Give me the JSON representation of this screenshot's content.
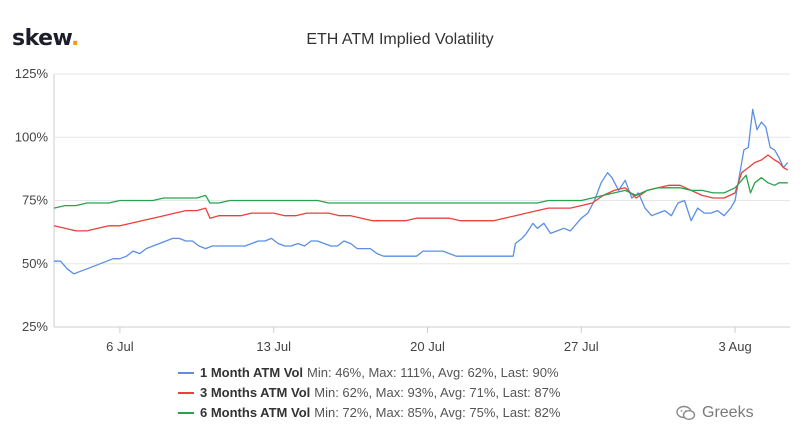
{
  "brand": {
    "name": "skew",
    "dot": "."
  },
  "watermark": {
    "text": "Greeks"
  },
  "chart_data": {
    "type": "line",
    "title": "ETH ATM Implied Volatility",
    "xlabel": "",
    "ylabel": "",
    "ylim": [
      25,
      125
    ],
    "xlim": [
      0,
      33.5
    ],
    "y_ticks": [
      {
        "value": 25,
        "label": "25%"
      },
      {
        "value": 50,
        "label": "50%"
      },
      {
        "value": 75,
        "label": "75%"
      },
      {
        "value": 100,
        "label": "100%"
      },
      {
        "value": 125,
        "label": "125%"
      }
    ],
    "x_ticks": [
      {
        "value": 3,
        "label": "6 Jul"
      },
      {
        "value": 10,
        "label": "13 Jul"
      },
      {
        "value": 17,
        "label": "20 Jul"
      },
      {
        "value": 24,
        "label": "27 Jul"
      },
      {
        "value": 31,
        "label": "3 Aug"
      }
    ],
    "x_unit": "days since 3 Jul",
    "grid": "horizontal",
    "legend_position": "bottom",
    "series": [
      {
        "name": "1 Month ATM Vol",
        "stats": "Min: 46%, Max: 111%, Avg: 62%, Last: 90%",
        "color": "#5b8fe3",
        "points": [
          [
            0,
            51
          ],
          [
            0.3,
            51
          ],
          [
            0.6,
            48
          ],
          [
            0.9,
            46
          ],
          [
            1.2,
            47
          ],
          [
            1.5,
            48
          ],
          [
            1.8,
            49
          ],
          [
            2.1,
            50
          ],
          [
            2.4,
            51
          ],
          [
            2.7,
            52
          ],
          [
            3,
            52
          ],
          [
            3.3,
            53
          ],
          [
            3.6,
            55
          ],
          [
            3.9,
            54
          ],
          [
            4.2,
            56
          ],
          [
            4.5,
            57
          ],
          [
            4.8,
            58
          ],
          [
            5.1,
            59
          ],
          [
            5.4,
            60
          ],
          [
            5.7,
            60
          ],
          [
            6,
            59
          ],
          [
            6.3,
            59
          ],
          [
            6.6,
            57
          ],
          [
            6.9,
            56
          ],
          [
            7.2,
            57
          ],
          [
            7.5,
            57
          ],
          [
            7.8,
            57
          ],
          [
            8.1,
            57
          ],
          [
            8.4,
            57
          ],
          [
            8.7,
            57
          ],
          [
            9,
            58
          ],
          [
            9.3,
            59
          ],
          [
            9.6,
            59
          ],
          [
            9.9,
            60
          ],
          [
            10.2,
            58
          ],
          [
            10.5,
            57
          ],
          [
            10.8,
            57
          ],
          [
            11.1,
            58
          ],
          [
            11.4,
            57
          ],
          [
            11.7,
            59
          ],
          [
            12,
            59
          ],
          [
            12.3,
            58
          ],
          [
            12.6,
            57
          ],
          [
            12.9,
            57
          ],
          [
            13.2,
            59
          ],
          [
            13.5,
            58
          ],
          [
            13.8,
            56
          ],
          [
            14.1,
            56
          ],
          [
            14.4,
            56
          ],
          [
            14.7,
            54
          ],
          [
            15,
            53
          ],
          [
            15.3,
            53
          ],
          [
            15.6,
            53
          ],
          [
            15.9,
            53
          ],
          [
            16.2,
            53
          ],
          [
            16.5,
            53
          ],
          [
            16.8,
            55
          ],
          [
            17.1,
            55
          ],
          [
            17.4,
            55
          ],
          [
            17.7,
            55
          ],
          [
            18,
            54
          ],
          [
            18.3,
            53
          ],
          [
            18.6,
            53
          ],
          [
            18.9,
            53
          ],
          [
            19.2,
            53
          ],
          [
            19.5,
            53
          ],
          [
            19.8,
            53
          ],
          [
            20.1,
            53
          ],
          [
            20.4,
            53
          ],
          [
            20.7,
            53
          ],
          [
            20.9,
            53
          ],
          [
            21,
            58
          ],
          [
            21.3,
            60
          ],
          [
            21.5,
            62
          ],
          [
            21.8,
            66
          ],
          [
            22,
            64
          ],
          [
            22.3,
            66
          ],
          [
            22.6,
            62
          ],
          [
            22.9,
            63
          ],
          [
            23.2,
            64
          ],
          [
            23.5,
            63
          ],
          [
            23.7,
            65
          ],
          [
            24,
            68
          ],
          [
            24.3,
            70
          ],
          [
            24.6,
            75
          ],
          [
            24.9,
            82
          ],
          [
            25.2,
            86
          ],
          [
            25.4,
            84
          ],
          [
            25.7,
            79
          ],
          [
            26,
            83
          ],
          [
            26.3,
            76
          ],
          [
            26.6,
            78
          ],
          [
            26.9,
            72
          ],
          [
            27.2,
            69
          ],
          [
            27.5,
            70
          ],
          [
            27.8,
            71
          ],
          [
            28.1,
            69
          ],
          [
            28.4,
            74
          ],
          [
            28.7,
            75
          ],
          [
            29,
            67
          ],
          [
            29.3,
            72
          ],
          [
            29.6,
            70
          ],
          [
            29.9,
            70
          ],
          [
            30.2,
            71
          ],
          [
            30.5,
            69
          ],
          [
            30.8,
            72
          ],
          [
            31,
            75
          ],
          [
            31.2,
            85
          ],
          [
            31.4,
            95
          ],
          [
            31.6,
            96
          ],
          [
            31.8,
            111
          ],
          [
            32,
            103
          ],
          [
            32.2,
            106
          ],
          [
            32.4,
            104
          ],
          [
            32.6,
            96
          ],
          [
            32.8,
            95
          ],
          [
            33,
            92
          ],
          [
            33.2,
            88
          ],
          [
            33.4,
            90
          ]
        ]
      },
      {
        "name": "3 Months ATM Vol",
        "stats": "Min: 62%, Max: 93%, Avg: 71%, Last: 87%",
        "color": "#e8413c",
        "points": [
          [
            0,
            65
          ],
          [
            0.5,
            64
          ],
          [
            1,
            63
          ],
          [
            1.5,
            63
          ],
          [
            2,
            64
          ],
          [
            2.5,
            65
          ],
          [
            3,
            65
          ],
          [
            3.5,
            66
          ],
          [
            4,
            67
          ],
          [
            4.5,
            68
          ],
          [
            5,
            69
          ],
          [
            5.5,
            70
          ],
          [
            6,
            71
          ],
          [
            6.5,
            71
          ],
          [
            6.9,
            72
          ],
          [
            7.1,
            68
          ],
          [
            7.5,
            69
          ],
          [
            8,
            69
          ],
          [
            8.5,
            69
          ],
          [
            9,
            70
          ],
          [
            9.5,
            70
          ],
          [
            10,
            70
          ],
          [
            10.5,
            69
          ],
          [
            11,
            69
          ],
          [
            11.5,
            70
          ],
          [
            12,
            70
          ],
          [
            12.5,
            70
          ],
          [
            13,
            69
          ],
          [
            13.5,
            69
          ],
          [
            14,
            68
          ],
          [
            14.5,
            67
          ],
          [
            15,
            67
          ],
          [
            15.5,
            67
          ],
          [
            16,
            67
          ],
          [
            16.5,
            68
          ],
          [
            17,
            68
          ],
          [
            17.5,
            68
          ],
          [
            18,
            68
          ],
          [
            18.5,
            67
          ],
          [
            19,
            67
          ],
          [
            19.5,
            67
          ],
          [
            20,
            67
          ],
          [
            20.5,
            68
          ],
          [
            21,
            69
          ],
          [
            21.5,
            70
          ],
          [
            22,
            71
          ],
          [
            22.5,
            72
          ],
          [
            23,
            72
          ],
          [
            23.5,
            72
          ],
          [
            24,
            73
          ],
          [
            24.5,
            74
          ],
          [
            25,
            77
          ],
          [
            25.5,
            79
          ],
          [
            26,
            80
          ],
          [
            26.5,
            76
          ],
          [
            27,
            79
          ],
          [
            27.5,
            80
          ],
          [
            28,
            81
          ],
          [
            28.5,
            81
          ],
          [
            29,
            79
          ],
          [
            29.5,
            77
          ],
          [
            30,
            76
          ],
          [
            30.5,
            76
          ],
          [
            31,
            78
          ],
          [
            31.3,
            86
          ],
          [
            31.6,
            88
          ],
          [
            31.9,
            90
          ],
          [
            32.2,
            91
          ],
          [
            32.5,
            93
          ],
          [
            32.8,
            91
          ],
          [
            33,
            90
          ],
          [
            33.2,
            88
          ],
          [
            33.4,
            87
          ]
        ]
      },
      {
        "name": "6 Months ATM Vol",
        "stats": "Min: 72%, Max: 85%, Avg: 75%, Last: 82%",
        "color": "#27a34e",
        "points": [
          [
            0,
            72
          ],
          [
            0.5,
            73
          ],
          [
            1,
            73
          ],
          [
            1.5,
            74
          ],
          [
            2,
            74
          ],
          [
            2.5,
            74
          ],
          [
            3,
            75
          ],
          [
            3.5,
            75
          ],
          [
            4,
            75
          ],
          [
            4.5,
            75
          ],
          [
            5,
            76
          ],
          [
            5.5,
            76
          ],
          [
            6,
            76
          ],
          [
            6.5,
            76
          ],
          [
            6.9,
            77
          ],
          [
            7.1,
            74
          ],
          [
            7.5,
            74
          ],
          [
            8,
            75
          ],
          [
            8.5,
            75
          ],
          [
            9,
            75
          ],
          [
            9.5,
            75
          ],
          [
            10,
            75
          ],
          [
            10.5,
            75
          ],
          [
            11,
            75
          ],
          [
            11.5,
            75
          ],
          [
            12,
            75
          ],
          [
            12.5,
            74
          ],
          [
            13,
            74
          ],
          [
            13.5,
            74
          ],
          [
            14,
            74
          ],
          [
            14.5,
            74
          ],
          [
            15,
            74
          ],
          [
            15.5,
            74
          ],
          [
            16,
            74
          ],
          [
            16.5,
            74
          ],
          [
            17,
            74
          ],
          [
            17.5,
            74
          ],
          [
            18,
            74
          ],
          [
            18.5,
            74
          ],
          [
            19,
            74
          ],
          [
            19.5,
            74
          ],
          [
            20,
            74
          ],
          [
            20.5,
            74
          ],
          [
            21,
            74
          ],
          [
            21.5,
            74
          ],
          [
            22,
            74
          ],
          [
            22.5,
            75
          ],
          [
            23,
            75
          ],
          [
            23.5,
            75
          ],
          [
            24,
            75
          ],
          [
            24.5,
            76
          ],
          [
            25,
            77
          ],
          [
            25.5,
            78
          ],
          [
            26,
            79
          ],
          [
            26.5,
            77
          ],
          [
            27,
            79
          ],
          [
            27.5,
            80
          ],
          [
            28,
            80
          ],
          [
            28.5,
            80
          ],
          [
            29,
            79
          ],
          [
            29.5,
            79
          ],
          [
            30,
            78
          ],
          [
            30.5,
            78
          ],
          [
            31,
            80
          ],
          [
            31.3,
            83
          ],
          [
            31.5,
            85
          ],
          [
            31.7,
            78
          ],
          [
            31.9,
            82
          ],
          [
            32.2,
            84
          ],
          [
            32.5,
            82
          ],
          [
            32.8,
            81
          ],
          [
            33,
            82
          ],
          [
            33.2,
            82
          ],
          [
            33.4,
            82
          ]
        ]
      }
    ]
  }
}
